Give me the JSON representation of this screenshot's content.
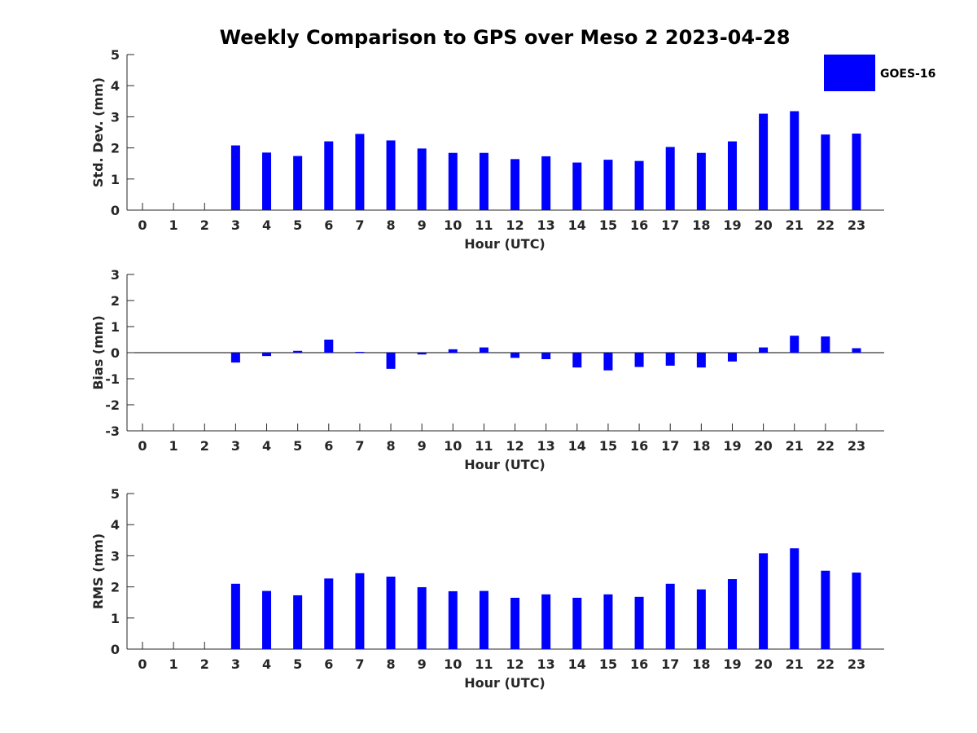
{
  "chart_data": {
    "title": "Weekly Comparison to GPS over Meso 2 2023-04-28",
    "legend": {
      "entries": [
        "GOES-16"
      ],
      "color": "#0000ff",
      "placement": "top-right"
    },
    "bar_color": "#0000ff",
    "charts": [
      {
        "type": "bar",
        "id": "stddev",
        "xlabel": "Hour (UTC)",
        "ylabel": "Std. Dev. (mm)",
        "ylim": [
          0,
          5
        ],
        "yticks": [
          0,
          1,
          2,
          3,
          4,
          5
        ],
        "categories": [
          "0",
          "1",
          "2",
          "3",
          "4",
          "5",
          "6",
          "7",
          "8",
          "9",
          "10",
          "11",
          "12",
          "13",
          "14",
          "15",
          "16",
          "17",
          "18",
          "19",
          "20",
          "21",
          "22",
          "23"
        ],
        "series": [
          {
            "name": "GOES-16",
            "values": [
              null,
              null,
              null,
              2.08,
              1.85,
              1.74,
              2.21,
              2.45,
              2.24,
              1.98,
              1.84,
              1.84,
              1.64,
              1.73,
              1.53,
              1.62,
              1.58,
              2.03,
              1.84,
              2.21,
              3.1,
              3.18,
              2.43,
              2.46
            ]
          }
        ]
      },
      {
        "type": "bar",
        "id": "bias",
        "xlabel": "Hour (UTC)",
        "ylabel": "Bias (mm)",
        "ylim": [
          -3,
          3
        ],
        "yticks": [
          -3,
          -2,
          -1,
          0,
          1,
          2,
          3
        ],
        "categories": [
          "0",
          "1",
          "2",
          "3",
          "4",
          "5",
          "6",
          "7",
          "8",
          "9",
          "10",
          "11",
          "12",
          "13",
          "14",
          "15",
          "16",
          "17",
          "18",
          "19",
          "20",
          "21",
          "22",
          "23"
        ],
        "series": [
          {
            "name": "GOES-16",
            "values": [
              null,
              null,
              null,
              -0.38,
              -0.13,
              0.07,
              0.5,
              0.03,
              -0.62,
              -0.07,
              0.13,
              0.2,
              -0.2,
              -0.25,
              -0.57,
              -0.68,
              -0.55,
              -0.5,
              -0.57,
              -0.34,
              0.2,
              0.65,
              0.62,
              0.17
            ]
          }
        ]
      },
      {
        "type": "bar",
        "id": "rms",
        "xlabel": "Hour (UTC)",
        "ylabel": "RMS (mm)",
        "ylim": [
          0,
          5
        ],
        "yticks": [
          0,
          1,
          2,
          3,
          4,
          5
        ],
        "categories": [
          "0",
          "1",
          "2",
          "3",
          "4",
          "5",
          "6",
          "7",
          "8",
          "9",
          "10",
          "11",
          "12",
          "13",
          "14",
          "15",
          "16",
          "17",
          "18",
          "19",
          "20",
          "21",
          "22",
          "23"
        ],
        "series": [
          {
            "name": "GOES-16",
            "values": [
              null,
              null,
              null,
              2.1,
              1.87,
              1.73,
              2.27,
              2.44,
              2.33,
              1.99,
              1.86,
              1.87,
              1.65,
              1.76,
              1.65,
              1.76,
              1.68,
              2.1,
              1.92,
              2.25,
              3.08,
              3.24,
              2.52,
              2.46
            ]
          }
        ]
      }
    ]
  }
}
